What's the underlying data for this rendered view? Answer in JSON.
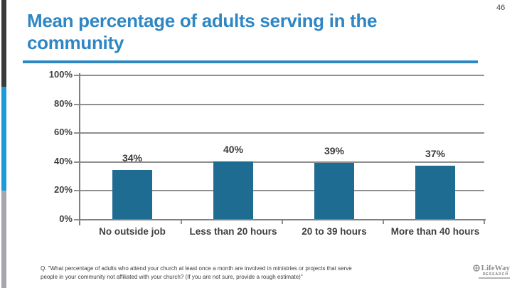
{
  "page_number": "46",
  "title": "Mean percentage of adults serving in the community",
  "chart_data": {
    "type": "bar",
    "categories": [
      "No outside job",
      "Less than 20 hours",
      "20 to 39 hours",
      "More than 40 hours"
    ],
    "values": [
      34,
      40,
      39,
      37
    ],
    "value_labels": [
      "34%",
      "40%",
      "39%",
      "37%"
    ],
    "title": "",
    "xlabel": "",
    "ylabel": "",
    "ylim": [
      0,
      100
    ],
    "ytick_labels": [
      "100%",
      "80%",
      "60%",
      "40%",
      "20%",
      "0%"
    ],
    "grid": true,
    "legend_position": "none",
    "bar_color": "#1F6C93"
  },
  "footnote": {
    "lines": [
      "Q. \"What percentage of adults who attend your church at least once a month are involved in ministries or projects that serve",
      "people in your community not affiliated with your church? (If you are not sure, provide a rough estimate)\""
    ]
  },
  "logo": {
    "brand": "LifeWay",
    "sub_brand": "RESEARCH"
  },
  "colors": {
    "title_blue": "#2E86C4",
    "underline_blue": "#2D87C3",
    "bar_teal": "#1F6C93",
    "stripe_dark": "#3B3B3B",
    "stripe_blue": "#1B9BD8",
    "stripe_gray": "#A5A6AF",
    "gridline_gray": "#8F8F8F",
    "text_dark": "#3F3F3F"
  }
}
